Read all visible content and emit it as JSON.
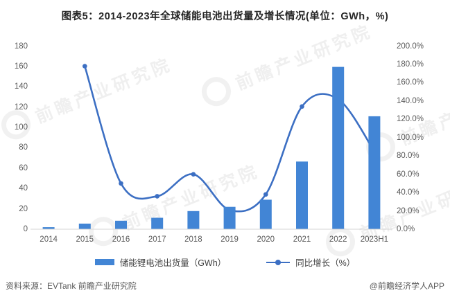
{
  "title": "图表5：2014-2023年全球储能电池出货量及增长情况(单位：GWh，%)",
  "chart_data": {
    "type": "bar",
    "combo": "bar+line",
    "title": "图表5：2014-2023年全球储能电池出货量及增长情况(单位：GWh，%)",
    "categories": [
      "2014",
      "2015",
      "2016",
      "2017",
      "2018",
      "2019",
      "2020",
      "2021",
      "2022",
      "2023H1"
    ],
    "series": [
      {
        "name": "储能锂电池出货量（GWh）",
        "type": "bar",
        "axis": "left",
        "color": "#4285d5",
        "values": [
          2,
          5.5,
          8.3,
          11.2,
          17.8,
          22,
          29,
          66.5,
          159.5,
          111
        ]
      },
      {
        "name": "同比增长（%）",
        "type": "line",
        "axis": "right",
        "color": "#3c6fc3",
        "values": [
          null,
          178,
          50,
          36,
          60,
          21,
          38,
          134,
          142,
          85
        ]
      }
    ],
    "left_axis": {
      "min": 0,
      "max": 180,
      "step": 20,
      "labels": [
        "180",
        "160",
        "140",
        "120",
        "100",
        "80",
        "60",
        "40",
        "20",
        "0"
      ]
    },
    "right_axis": {
      "min": 0,
      "max": 200,
      "step": 20,
      "labels": [
        "200.0%",
        "180.0%",
        "160.0%",
        "140.0%",
        "120.0%",
        "100.0%",
        "80.0%",
        "60.0%",
        "40.0%",
        "20.0%",
        "0.0%"
      ]
    },
    "grid": false,
    "legend_position": "bottom"
  },
  "colors": {
    "bar": "#4285d5",
    "line": "#3c6fc3",
    "axis_line": "#d6d6d6",
    "tick_text": "#595959",
    "title_text": "#262626",
    "watermark": "#e3e3e3"
  },
  "footer": {
    "source": "资料来源：EVTank 前瞻产业研究院",
    "credit": "@前瞻经济学人APP"
  },
  "watermark": {
    "text": "前瞻产业研究院"
  }
}
